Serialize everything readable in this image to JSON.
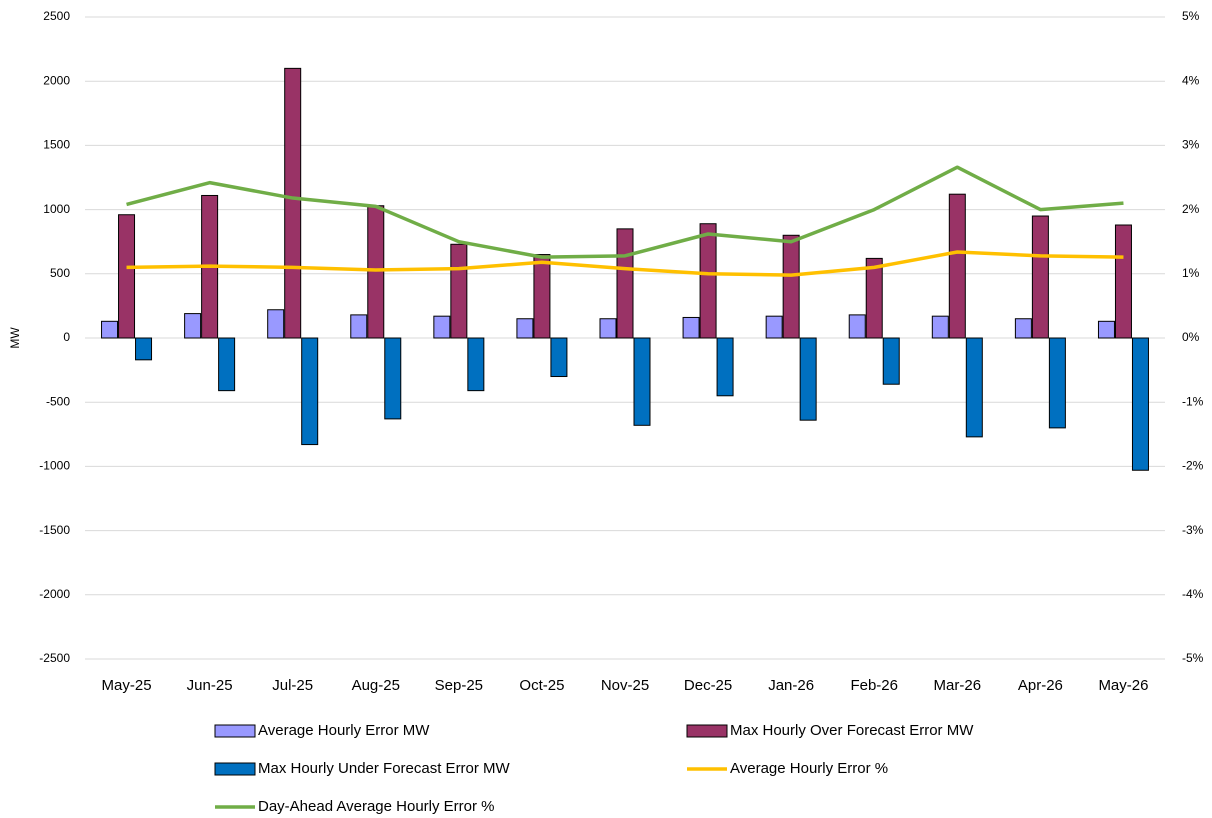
{
  "chart_data": {
    "type": "bar-line",
    "y_label": "MW",
    "categories": [
      "May-25",
      "Jun-25",
      "Jul-25",
      "Aug-25",
      "Sep-25",
      "Oct-25",
      "Nov-25",
      "Dec-25",
      "Jan-26",
      "Feb-26",
      "Mar-26",
      "Apr-26",
      "May-26"
    ],
    "series": [
      {
        "name": "Average Hourly Error MW",
        "type": "bar",
        "color": "#9999ff",
        "values": [
          130,
          190,
          220,
          180,
          170,
          150,
          150,
          160,
          170,
          180,
          170,
          150,
          130
        ]
      },
      {
        "name": "Max Hourly Over Forecast Error MW",
        "type": "bar",
        "color": "#993366",
        "values": [
          960,
          1110,
          2100,
          1030,
          730,
          650,
          850,
          890,
          800,
          620,
          1120,
          950,
          880
        ]
      },
      {
        "name": "Max Hourly Under Forecast Error MW",
        "type": "bar",
        "color": "#0070c0",
        "values": [
          -170,
          -410,
          -830,
          -630,
          -410,
          -300,
          -680,
          -450,
          -640,
          -360,
          -770,
          -700,
          -1030
        ]
      },
      {
        "name": "Average Hourly Error %",
        "type": "line",
        "axis": "y2",
        "color": "#ffc000",
        "values": [
          1.1,
          1.12,
          1.1,
          1.06,
          1.08,
          1.18,
          1.08,
          1.0,
          0.98,
          1.1,
          1.34,
          1.28,
          1.26
        ]
      },
      {
        "name": "Day-Ahead Average Hourly Error %",
        "type": "line",
        "axis": "y2",
        "color": "#70ad47",
        "values": [
          2.08,
          2.42,
          2.18,
          2.05,
          1.5,
          1.26,
          1.28,
          1.62,
          1.5,
          2.0,
          2.66,
          2.0,
          2.1
        ]
      }
    ],
    "ylim": [
      -2500,
      2500
    ],
    "yticks": [
      -2500,
      -2000,
      -1500,
      -1000,
      -500,
      0,
      500,
      1000,
      1500,
      2000,
      2500
    ],
    "y2lim": [
      -5,
      5
    ],
    "y2ticks": [
      {
        "value": -5,
        "label": "-5%"
      },
      {
        "value": -4,
        "label": "-4%"
      },
      {
        "value": -3,
        "label": "-3%"
      },
      {
        "value": -2,
        "label": "-2%"
      },
      {
        "value": -1,
        "label": "-1%"
      },
      {
        "value": 0,
        "label": "0%"
      },
      {
        "value": 1,
        "label": "1%"
      },
      {
        "value": 2,
        "label": "2%"
      },
      {
        "value": 3,
        "label": "3%"
      },
      {
        "value": 4,
        "label": "4%"
      },
      {
        "value": 5,
        "label": "5%"
      }
    ],
    "grid": true
  }
}
